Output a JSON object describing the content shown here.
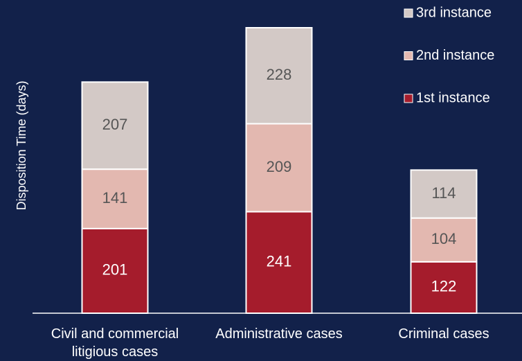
{
  "chart_data": {
    "type": "stacked_bar",
    "y_label": "Disposition Time (days)",
    "categories": [
      "Civil and commercial litigious cases",
      "Administrative cases",
      "Criminal cases"
    ],
    "series": [
      {
        "name": "1st instance",
        "color": "#a51c2c",
        "values": [
          201,
          241,
          122
        ]
      },
      {
        "name": "2nd instance",
        "color": "#e3b8b0",
        "values": [
          141,
          209,
          104
        ]
      },
      {
        "name": "3rd instance",
        "color": "#d3c9c6",
        "values": [
          207,
          228,
          114
        ]
      }
    ],
    "legend": "top-right"
  }
}
